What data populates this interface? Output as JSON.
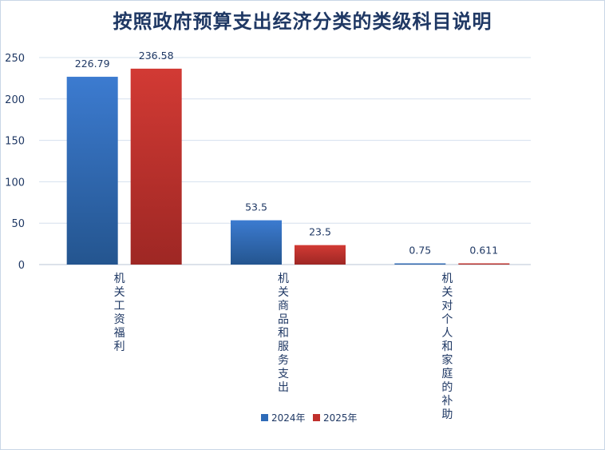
{
  "chart_data": {
    "type": "bar",
    "title": "按照政府预算支出经济分类的类级科目说明",
    "categories": [
      "机关工资福利",
      "机关商品和服务支出",
      "机关对个人和家庭的补助"
    ],
    "series": [
      {
        "name": "2024年",
        "values": [
          226.79,
          53.5,
          0.75
        ],
        "color": "#2e6bb8"
      },
      {
        "name": "2025年",
        "values": [
          236.58,
          23.5,
          0.611
        ],
        "color": "#c0302c"
      }
    ],
    "data_labels": [
      [
        "226.79",
        "53.5",
        "0.75"
      ],
      [
        "236.58",
        "23.5",
        "0.611"
      ]
    ],
    "ylim": [
      0,
      250
    ],
    "yticks": [
      0,
      50,
      100,
      150,
      200,
      250
    ],
    "grid": true,
    "legend": "bottom"
  }
}
